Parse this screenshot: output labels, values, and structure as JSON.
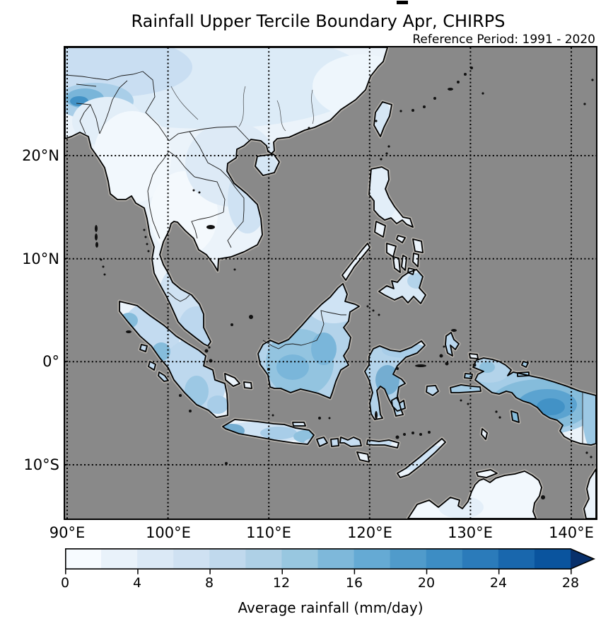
{
  "figure": {
    "title": "Rainfall Upper Tercile Boundary Apr, CHIRPS",
    "subtitle": "Reference Period: 1991 - 2020"
  },
  "map": {
    "xtick_labels": [
      "90°E",
      "100°E",
      "110°E",
      "120°E",
      "130°E",
      "140°E"
    ],
    "ytick_labels": [
      "20°N",
      "10°N",
      "0°",
      "10°S"
    ],
    "ocean_color": "#898989",
    "nodata_fringe_color": "#b5b1ab",
    "coastline_color": "#000000",
    "gridlines": "dotted"
  },
  "colorbar": {
    "label": "Average rainfall (mm/day)",
    "tick_labels": [
      "0",
      "4",
      "8",
      "12",
      "16",
      "20",
      "24",
      "28"
    ],
    "tick_values": [
      0,
      4,
      8,
      12,
      16,
      20,
      24,
      28
    ],
    "vmin": 0,
    "vmax": 28,
    "interval": 2,
    "extend": "max",
    "segment_colors": [
      "#f7fbff",
      "#e9f2fa",
      "#dbe9f6",
      "#cfe1f2",
      "#c0d9ed",
      "#aed0e6",
      "#98c7e0",
      "#7eb8da",
      "#65aad4",
      "#509bcb",
      "#3d8dc4",
      "#2b7bba",
      "#1967ad",
      "#0a549e"
    ],
    "extend_color": "#08306b"
  },
  "chart_data": {
    "type": "heatmap",
    "title": "Rainfall Upper Tercile Boundary Apr, CHIRPS",
    "subtitle": "Reference Period: 1991 - 2020",
    "colorbar_label": "Average rainfall (mm/day)",
    "colorbar_ticks": [
      0,
      4,
      8,
      12,
      16,
      20,
      24,
      28
    ],
    "colorbar_range": [
      0,
      28
    ],
    "colorbar_bin_width": 2,
    "lon_tick_labels": [
      "90°E",
      "100°E",
      "110°E",
      "120°E",
      "130°E",
      "140°E"
    ],
    "lat_tick_labels": [
      "20°N",
      "10°N",
      "0°",
      "10°S"
    ],
    "legend_position": "bottom",
    "grid": true
  }
}
